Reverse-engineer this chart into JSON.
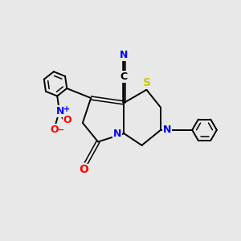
{
  "background_color": "#e8e8e8",
  "bond_color": "#000000",
  "atom_colors": {
    "N": "#0000ff",
    "O": "#ff0000",
    "S": "#cccc00",
    "C": "#000000"
  },
  "figsize": [
    3.0,
    3.0
  ],
  "dpi": 100
}
